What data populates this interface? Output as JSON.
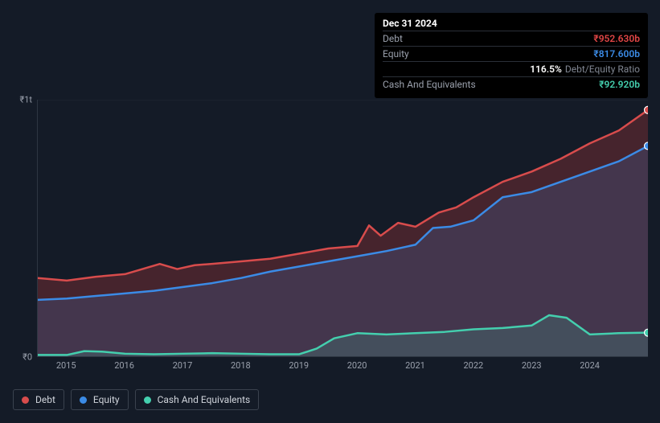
{
  "tooltip": {
    "date": "Dec 31 2024",
    "rows": [
      {
        "label": "Debt",
        "value": "₹952.630b",
        "color": "#e24646"
      },
      {
        "label": "Equity",
        "value": "₹817.600b",
        "color": "#3b8be6"
      },
      {
        "label": "",
        "value": "116.5%",
        "note": "Debt/Equity Ratio",
        "color": "#ffffff"
      },
      {
        "label": "Cash And Equivalents",
        "value": "₹92.920b",
        "color": "#44cfae"
      }
    ]
  },
  "chart": {
    "type": "area",
    "background_color": "#141b27",
    "grid_color": "#222a36",
    "axis_color": "#2e3642",
    "ylim": [
      0,
      1000
    ],
    "ytick_positions": [
      0,
      1000
    ],
    "ytick_labels": [
      "₹0",
      "₹1t"
    ],
    "xlim": [
      2014.5,
      2025
    ],
    "xtick_years": [
      2015,
      2016,
      2017,
      2018,
      2019,
      2020,
      2021,
      2022,
      2023,
      2024
    ],
    "line_width": 2.5,
    "series": [
      {
        "name": "Debt",
        "color": "#d84c4c",
        "fill": "rgba(200,60,60,0.28)",
        "x": [
          2014.5,
          2015,
          2015.5,
          2016,
          2016.6,
          2016.9,
          2017.2,
          2017.5,
          2018,
          2018.5,
          2019,
          2019.5,
          2020,
          2020.2,
          2020.4,
          2020.7,
          2021,
          2021.4,
          2021.7,
          2022,
          2022.5,
          2023,
          2023.5,
          2024,
          2024.5,
          2025
        ],
        "y": [
          305,
          295,
          310,
          320,
          360,
          340,
          355,
          360,
          370,
          380,
          400,
          420,
          430,
          510,
          470,
          520,
          505,
          560,
          580,
          620,
          680,
          720,
          770,
          830,
          880,
          960
        ]
      },
      {
        "name": "Equity",
        "color": "#3b8be6",
        "fill": "rgba(59,139,230,0.18)",
        "x": [
          2014.5,
          2015,
          2015.5,
          2016,
          2016.5,
          2017,
          2017.5,
          2018,
          2018.5,
          2019,
          2019.5,
          2020,
          2020.5,
          2021,
          2021.3,
          2021.6,
          2022,
          2022.5,
          2023,
          2023.5,
          2024,
          2024.5,
          2025
        ],
        "y": [
          220,
          225,
          235,
          245,
          255,
          270,
          285,
          305,
          330,
          350,
          370,
          390,
          410,
          435,
          500,
          505,
          530,
          620,
          640,
          680,
          720,
          760,
          820
        ]
      },
      {
        "name": "Cash And Equivalents",
        "color": "#44cfae",
        "fill": "rgba(68,207,174,0.16)",
        "x": [
          2014.5,
          2015,
          2015.3,
          2015.6,
          2016,
          2016.5,
          2017,
          2017.5,
          2018,
          2018.5,
          2019,
          2019.3,
          2019.6,
          2020,
          2020.5,
          2021,
          2021.5,
          2022,
          2022.5,
          2023,
          2023.3,
          2023.6,
          2024,
          2024.5,
          2025
        ],
        "y": [
          5,
          5,
          20,
          18,
          10,
          8,
          10,
          12,
          10,
          8,
          8,
          30,
          70,
          90,
          85,
          90,
          95,
          105,
          110,
          120,
          160,
          150,
          85,
          90,
          92
        ]
      }
    ]
  },
  "legend": {
    "items": [
      {
        "label": "Debt",
        "color": "#d84c4c"
      },
      {
        "label": "Equity",
        "color": "#3b8be6"
      },
      {
        "label": "Cash And Equivalents",
        "color": "#44cfae"
      }
    ]
  }
}
